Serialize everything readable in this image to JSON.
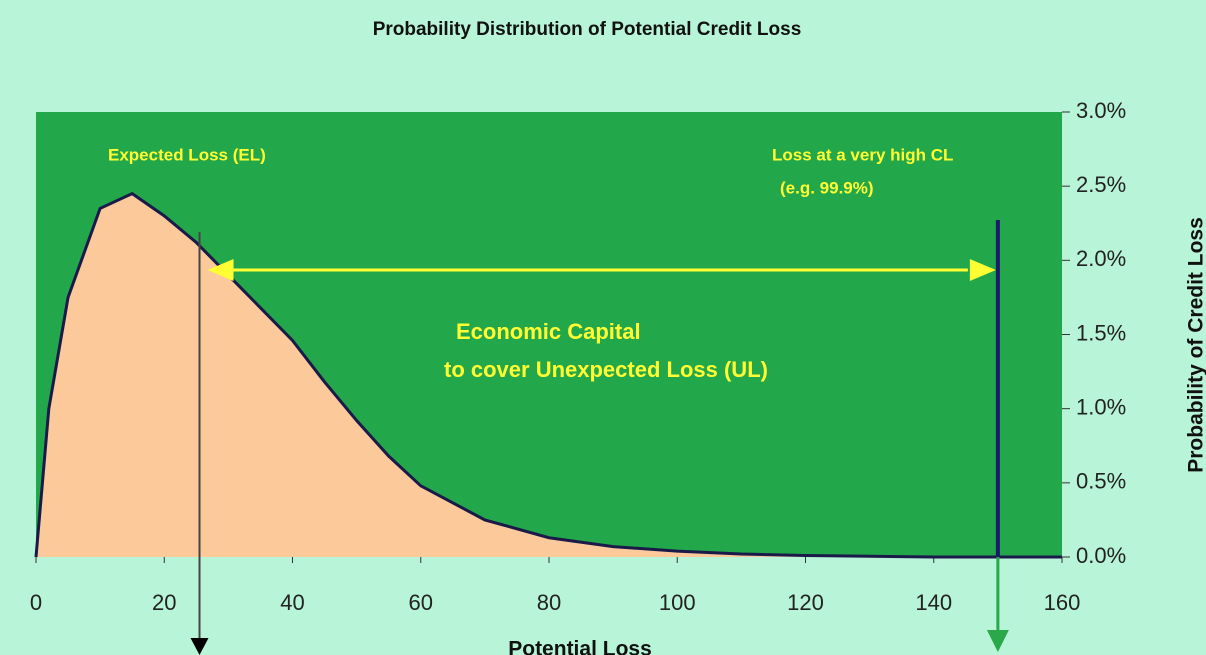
{
  "chart_data": {
    "type": "area",
    "title": "Probability Distribution of Potential Credit Loss",
    "x_label": "Potential Loss",
    "y_label": "Probability of Credit Loss",
    "x": [
      0,
      2,
      5,
      10,
      15,
      20,
      25,
      30,
      35,
      40,
      45,
      50,
      55,
      60,
      70,
      80,
      90,
      100,
      110,
      120,
      130,
      140,
      160
    ],
    "series": [
      {
        "color": "#fcc99b",
        "values": [
          0,
          1.0,
          1.75,
          2.35,
          2.45,
          2.3,
          2.12,
          1.9,
          1.68,
          1.46,
          1.18,
          0.92,
          0.68,
          0.48,
          0.25,
          0.13,
          0.07,
          0.04,
          0.02,
          0.01,
          0.005,
          0,
          0
        ]
      }
    ],
    "xlim": [
      0,
      160
    ],
    "xticks": [
      0,
      20,
      40,
      60,
      80,
      100,
      120,
      140,
      160
    ],
    "ylim": [
      0,
      3
    ],
    "yticks": [
      {
        "value": 0,
        "label": "0.0%"
      },
      {
        "value": 0.5,
        "label": "0.5%"
      },
      {
        "value": 1,
        "label": "1.0%"
      },
      {
        "value": 1.5,
        "label": "1.5%"
      },
      {
        "value": 2,
        "label": "2.0%"
      },
      {
        "value": 2.5,
        "label": "2.5%"
      },
      {
        "value": 3,
        "label": "3.0%"
      }
    ],
    "reference_lines": [
      25.5,
      150
    ],
    "annotations": {
      "expected_loss": "Expected Loss (EL)",
      "high_cl": [
        "Loss at a very high CL",
        "(e.g. 99.9%)"
      ],
      "capital": [
        "Economic Capital",
        "to cover Unexpected Loss  (UL)"
      ]
    }
  }
}
